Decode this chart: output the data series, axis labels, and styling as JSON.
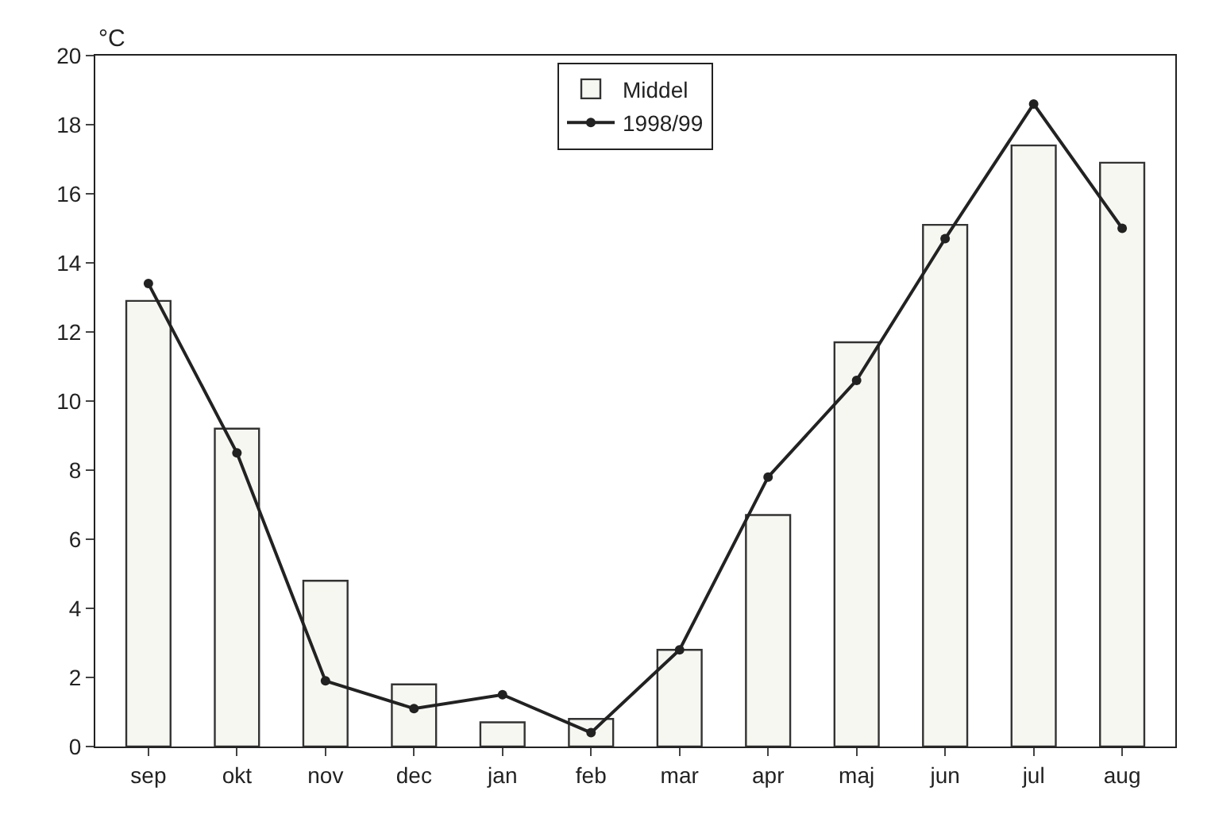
{
  "chart_data": {
    "type": "bar",
    "ylabel": "°C",
    "categories": [
      "sep",
      "okt",
      "nov",
      "dec",
      "jan",
      "feb",
      "mar",
      "apr",
      "maj",
      "jun",
      "jul",
      "aug"
    ],
    "series": [
      {
        "name": "Middel",
        "color": "#f7f7f2",
        "values": [
          12.9,
          9.2,
          4.8,
          1.8,
          0.7,
          0.8,
          2.8,
          6.7,
          11.7,
          15.1,
          17.4,
          16.9
        ]
      },
      {
        "name": "1998/99",
        "type": "line",
        "color": "#222222",
        "marker": "circle",
        "values": [
          13.4,
          8.5,
          1.9,
          1.1,
          1.5,
          0.4,
          2.8,
          7.8,
          10.6,
          14.7,
          18.6,
          15.0
        ]
      }
    ],
    "ylim": [
      0,
      20
    ],
    "yticks": [
      0,
      2,
      4,
      6,
      8,
      10,
      12,
      14,
      16,
      18,
      20
    ],
    "grid": false,
    "legend": "top"
  }
}
